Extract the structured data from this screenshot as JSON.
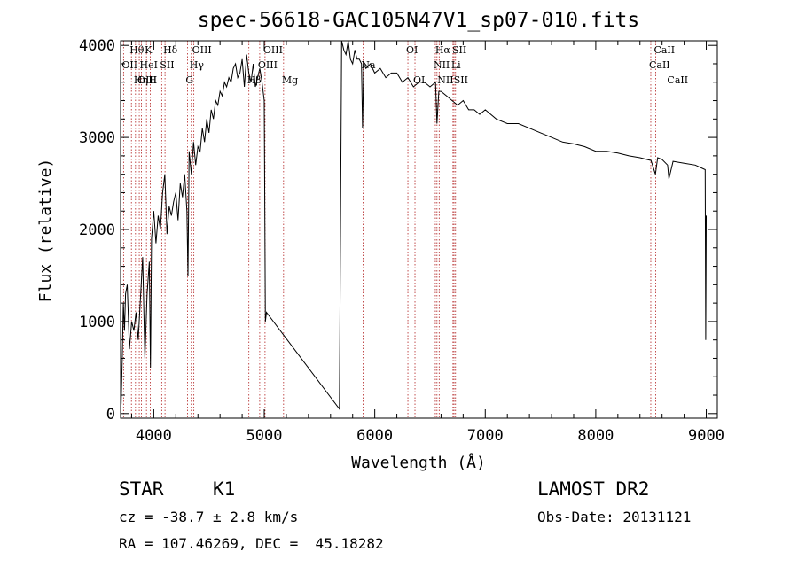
{
  "chart_data": {
    "type": "line",
    "title": "spec-56618-GAC105N47V1_sp07-010.fits",
    "xlabel": "Wavelength (Å)",
    "ylabel": "Flux (relative)",
    "xlim": [
      3700,
      9100
    ],
    "ylim": [
      -50,
      4050
    ],
    "x_ticks": [
      4000,
      5000,
      6000,
      7000,
      8000,
      9000
    ],
    "y_ticks": [
      0,
      1000,
      2000,
      3000,
      4000
    ],
    "series": [
      {
        "x": [
          3705,
          3715,
          3725,
          3735,
          3745,
          3760,
          3780,
          3800,
          3820,
          3840,
          3860,
          3880,
          3900,
          3920,
          3940,
          3960,
          3970,
          3980,
          4000,
          4020,
          4040,
          4060,
          4080,
          4100,
          4120,
          4140,
          4160,
          4180,
          4200,
          4220,
          4240,
          4260,
          4280,
          4300,
          4310,
          4320,
          4340,
          4360,
          4380,
          4400,
          4420,
          4440,
          4460,
          4480,
          4500,
          4520,
          4540,
          4560,
          4580,
          4600,
          4620,
          4640,
          4660,
          4680,
          4700,
          4720,
          4740,
          4760,
          4780,
          4800,
          4820,
          4840,
          4860,
          4880,
          4900,
          4920,
          4940,
          4960,
          4980,
          5000,
          5010,
          5020,
          5680,
          5700,
          5720,
          5740,
          5760,
          5780,
          5800,
          5820,
          5840,
          5860,
          5880,
          5890,
          5900,
          5920,
          5960,
          6000,
          6050,
          6100,
          6150,
          6200,
          6250,
          6300,
          6350,
          6400,
          6450,
          6500,
          6550,
          6563,
          6580,
          6600,
          6650,
          6700,
          6750,
          6800,
          6850,
          6900,
          6950,
          7000,
          7100,
          7200,
          7300,
          7400,
          7500,
          7600,
          7700,
          7800,
          7900,
          8000,
          8100,
          8200,
          8300,
          8400,
          8500,
          8540,
          8560,
          8600,
          8650,
          8662,
          8700,
          8800,
          8900,
          8990,
          8995,
          9000
        ],
        "y": [
          100,
          600,
          1200,
          900,
          1300,
          1400,
          700,
          1000,
          900,
          1100,
          800,
          1250,
          1700,
          600,
          1300,
          1650,
          500,
          1900,
          2200,
          1850,
          2150,
          2000,
          2400,
          2600,
          1950,
          2250,
          2150,
          2300,
          2400,
          2100,
          2500,
          2350,
          2600,
          2200,
          1500,
          2850,
          2600,
          2950,
          2700,
          2900,
          2850,
          3100,
          2950,
          3200,
          3050,
          3300,
          3200,
          3400,
          3350,
          3500,
          3450,
          3600,
          3550,
          3650,
          3600,
          3750,
          3800,
          3650,
          3700,
          3850,
          3550,
          3900,
          3700,
          3600,
          3800,
          3550,
          3650,
          3750,
          3600,
          3400,
          1000,
          1100,
          50,
          4050,
          3950,
          3900,
          4050,
          3850,
          3800,
          3950,
          3850,
          3850,
          3800,
          3100,
          3800,
          3750,
          3800,
          3700,
          3750,
          3650,
          3700,
          3700,
          3600,
          3650,
          3550,
          3600,
          3600,
          3550,
          3600,
          3150,
          3500,
          3500,
          3450,
          3400,
          3350,
          3400,
          3300,
          3300,
          3250,
          3300,
          3200,
          3150,
          3150,
          3100,
          3050,
          3000,
          2950,
          2930,
          2900,
          2850,
          2850,
          2830,
          2800,
          2780,
          2750,
          2600,
          2780,
          2760,
          2700,
          2550,
          2740,
          2720,
          2700,
          2650,
          800,
          2150
        ]
      }
    ],
    "line_markers": [
      {
        "label": "Hθ",
        "x": 3798,
        "row": 0
      },
      {
        "label": "OII",
        "x": 3727,
        "row": 1
      },
      {
        "label": "OIII",
        "x": 3869,
        "row": 2
      },
      {
        "label": "K",
        "x": 3934,
        "row": 0
      },
      {
        "label": "HeI",
        "x": 3889,
        "row": 1
      },
      {
        "label": "Hη",
        "x": 3835,
        "row": 2
      },
      {
        "label": "Hδ",
        "x": 4102,
        "row": 0
      },
      {
        "label": "SII",
        "x": 4072,
        "row": 1
      },
      {
        "label": "H",
        "x": 3968,
        "row": 2
      },
      {
        "label": "OIII",
        "x": 4363,
        "row": 0
      },
      {
        "label": "Hγ",
        "x": 4340,
        "row": 1
      },
      {
        "label": "G",
        "x": 4305,
        "row": 2
      },
      {
        "label": "OIII",
        "x": 5007,
        "row": 0
      },
      {
        "label": "OIII",
        "x": 4959,
        "row": 1
      },
      {
        "label": "Hβ",
        "x": 4861,
        "row": 2
      },
      {
        "label": "Mg",
        "x": 5175,
        "row": 2
      },
      {
        "label": "Na",
        "x": 5894,
        "row": 1
      },
      {
        "label": "OI",
        "x": 6300,
        "row": 0
      },
      {
        "label": "OI",
        "x": 6364,
        "row": 2
      },
      {
        "label": "Hα",
        "x": 6563,
        "row": 0
      },
      {
        "label": "SII",
        "x": 6717,
        "row": 0
      },
      {
        "label": "NII",
        "x": 6548,
        "row": 1
      },
      {
        "label": "Li",
        "x": 6708,
        "row": 1
      },
      {
        "label": "NII",
        "x": 6583,
        "row": 2
      },
      {
        "label": "SII",
        "x": 6731,
        "row": 2
      },
      {
        "label": "CaII",
        "x": 8542,
        "row": 0
      },
      {
        "label": "CaII",
        "x": 8498,
        "row": 1
      },
      {
        "label": "CaII",
        "x": 8662,
        "row": 2
      }
    ]
  },
  "info": {
    "class_label": "STAR",
    "subclass": "K1",
    "survey": "LAMOST DR2",
    "cz": "cz = -38.7 ± 2.8 km/s",
    "obs_date": "Obs-Date: 20131121",
    "coords": "RA = 107.46269, DEC =  45.18282"
  }
}
